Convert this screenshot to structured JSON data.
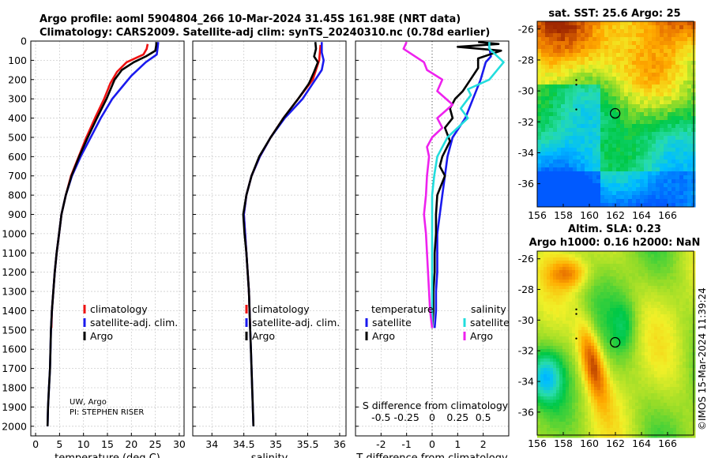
{
  "title": {
    "line1": "Argo profile: aoml 5904804_266 10-Mar-2024 31.45S 161.98E (NRT data)",
    "line2": "Climatology: CARS2009. Satellite-adj clim: synTS_20240310.nc (0.78d earlier)"
  },
  "credits": {
    "line1": "UW, Argo",
    "line2": "PI: STEPHEN RISER"
  },
  "watermark": "©IMOS 15-Mar-2024 11:39:24",
  "colors": {
    "climatology": "#ee1111",
    "satellite": "#1a1aee",
    "argo": "#000000",
    "sat_salinity": "#22dddd",
    "argo_salinity": "#ee22ee"
  },
  "chart_data": [
    {
      "id": "temperature",
      "type": "line",
      "xlabel": "temperature (deg C)",
      "ylabel": "",
      "xlim": [
        -1,
        31
      ],
      "ylim": [
        2050,
        0
      ],
      "xticks": [
        0,
        5,
        10,
        15,
        20,
        25,
        30
      ],
      "yticks": [
        0,
        100,
        200,
        300,
        400,
        500,
        600,
        700,
        800,
        900,
        1000,
        1100,
        1200,
        1300,
        1400,
        1500,
        1600,
        1700,
        1800,
        1900,
        2000
      ],
      "legend": {
        "placement": "lower-right",
        "entries": [
          "climatology",
          "satellite-adj. clim.",
          "Argo"
        ]
      },
      "series": [
        {
          "name": "climatology",
          "color": "#ee1111",
          "points": [
            [
              23.4,
              15
            ],
            [
              23.2,
              40
            ],
            [
              22.5,
              70
            ],
            [
              19.0,
              110
            ],
            [
              17.0,
              160
            ],
            [
              15.6,
              220
            ],
            [
              14.3,
              300
            ],
            [
              12.4,
              400
            ],
            [
              10.6,
              500
            ],
            [
              9.0,
              600
            ],
            [
              7.4,
              700
            ],
            [
              6.3,
              800
            ],
            [
              5.4,
              900
            ],
            [
              4.9,
              1000
            ],
            [
              4.4,
              1100
            ],
            [
              4.0,
              1200
            ],
            [
              3.7,
              1300
            ],
            [
              3.4,
              1400
            ],
            [
              3.3,
              1490
            ]
          ]
        },
        {
          "name": "satellite-adj. clim.",
          "color": "#1a1aee",
          "points": [
            [
              25.6,
              5
            ],
            [
              25.5,
              30
            ],
            [
              25.3,
              70
            ],
            [
              23.0,
              110
            ],
            [
              20.0,
              180
            ],
            [
              18.0,
              240
            ],
            [
              16.0,
              300
            ],
            [
              13.6,
              400
            ],
            [
              11.5,
              500
            ],
            [
              9.4,
              600
            ],
            [
              7.6,
              700
            ],
            [
              6.3,
              800
            ],
            [
              5.4,
              900
            ],
            [
              4.9,
              1000
            ],
            [
              4.4,
              1100
            ],
            [
              4.0,
              1200
            ],
            [
              3.7,
              1300
            ],
            [
              3.4,
              1400
            ],
            [
              3.2,
              1500
            ],
            [
              3.1,
              1600
            ],
            [
              3.0,
              1700
            ],
            [
              2.8,
              1800
            ],
            [
              2.6,
              1900
            ],
            [
              2.5,
              2000
            ]
          ]
        },
        {
          "name": "Argo",
          "color": "#000000",
          "points": [
            [
              25.2,
              5
            ],
            [
              25.2,
              20
            ],
            [
              25.0,
              50
            ],
            [
              23.0,
              80
            ],
            [
              20.5,
              110
            ],
            [
              18.0,
              150
            ],
            [
              16.5,
              200
            ],
            [
              14.8,
              300
            ],
            [
              12.8,
              400
            ],
            [
              10.9,
              500
            ],
            [
              9.1,
              600
            ],
            [
              7.5,
              700
            ],
            [
              6.3,
              800
            ],
            [
              5.4,
              900
            ],
            [
              4.9,
              1000
            ],
            [
              4.4,
              1100
            ],
            [
              4.0,
              1200
            ],
            [
              3.7,
              1300
            ],
            [
              3.4,
              1400
            ],
            [
              3.2,
              1500
            ],
            [
              3.1,
              1600
            ],
            [
              3.0,
              1700
            ],
            [
              2.8,
              1800
            ],
            [
              2.6,
              1900
            ],
            [
              2.5,
              2000
            ]
          ]
        }
      ]
    },
    {
      "id": "salinity",
      "type": "line",
      "xlabel": "salinity",
      "ylabel": "",
      "xlim": [
        33.7,
        36.1
      ],
      "ylim": [
        2050,
        0
      ],
      "xticks": [
        34,
        34.5,
        35,
        35.5,
        36
      ],
      "yticks": [
        0,
        100,
        200,
        300,
        400,
        500,
        600,
        700,
        800,
        900,
        1000,
        1100,
        1200,
        1300,
        1400,
        1500,
        1600,
        1700,
        1800,
        1900,
        2000
      ],
      "legend": {
        "placement": "lower-right",
        "entries": [
          "climatology",
          "satellite-adj. clim.",
          "Argo"
        ]
      },
      "series": [
        {
          "name": "climatology",
          "color": "#ee1111",
          "points": [
            [
              35.7,
              20
            ],
            [
              35.68,
              100
            ],
            [
              35.58,
              200
            ],
            [
              35.35,
              300
            ],
            [
              35.12,
              400
            ],
            [
              34.92,
              500
            ],
            [
              34.75,
              600
            ],
            [
              34.62,
              700
            ],
            [
              34.54,
              800
            ],
            [
              34.5,
              900
            ],
            [
              34.52,
              1000
            ],
            [
              34.54,
              1100
            ],
            [
              34.56,
              1200
            ],
            [
              34.58,
              1300
            ],
            [
              34.59,
              1400
            ],
            [
              34.6,
              1490
            ]
          ]
        },
        {
          "name": "satellite-adj. clim.",
          "color": "#1a1aee",
          "points": [
            [
              35.72,
              5
            ],
            [
              35.72,
              60
            ],
            [
              35.75,
              100
            ],
            [
              35.72,
              150
            ],
            [
              35.62,
              200
            ],
            [
              35.42,
              300
            ],
            [
              35.14,
              400
            ],
            [
              34.92,
              500
            ],
            [
              34.75,
              600
            ],
            [
              34.62,
              700
            ],
            [
              34.54,
              800
            ],
            [
              34.5,
              900
            ],
            [
              34.52,
              1000
            ],
            [
              34.54,
              1100
            ],
            [
              34.56,
              1200
            ],
            [
              34.58,
              1300
            ],
            [
              34.59,
              1400
            ],
            [
              34.6,
              1500
            ],
            [
              34.61,
              1600
            ],
            [
              34.62,
              1700
            ],
            [
              34.63,
              1800
            ],
            [
              34.64,
              1900
            ],
            [
              34.65,
              2000
            ]
          ]
        },
        {
          "name": "Argo",
          "color": "#000000",
          "points": [
            [
              35.62,
              5
            ],
            [
              35.63,
              40
            ],
            [
              35.6,
              80
            ],
            [
              35.66,
              110
            ],
            [
              35.6,
              160
            ],
            [
              35.52,
              220
            ],
            [
              35.35,
              300
            ],
            [
              35.12,
              400
            ],
            [
              34.92,
              500
            ],
            [
              34.74,
              600
            ],
            [
              34.62,
              700
            ],
            [
              34.54,
              800
            ],
            [
              34.49,
              900
            ],
            [
              34.51,
              1000
            ],
            [
              34.54,
              1100
            ],
            [
              34.56,
              1200
            ],
            [
              34.58,
              1300
            ],
            [
              34.59,
              1400
            ],
            [
              34.6,
              1500
            ],
            [
              34.61,
              1600
            ],
            [
              34.62,
              1700
            ],
            [
              34.63,
              1800
            ],
            [
              34.64,
              1900
            ],
            [
              34.65,
              2000
            ]
          ]
        }
      ]
    },
    {
      "id": "difference",
      "type": "line",
      "xlabel": "T difference from climatology",
      "xlabel2": "S difference from climatology",
      "xlim": [
        -3,
        3
      ],
      "ylim": [
        2050,
        0
      ],
      "xticks": [
        -2,
        -1,
        0,
        1,
        2
      ],
      "xticks2_values": [
        -0.5,
        -0.25,
        0,
        0.25,
        0.5
      ],
      "xticks2_labels": [
        "-0.5",
        "-0.25",
        "0",
        "0.25",
        "0.5"
      ],
      "yticks": [
        0,
        100,
        200,
        300,
        400,
        500,
        600,
        700,
        800,
        900,
        1000,
        1100,
        1200,
        1300,
        1400,
        1500,
        1600,
        1700,
        1800,
        1900,
        2000
      ],
      "legend": {
        "placement": "lower",
        "temperature_title": "temperature",
        "salinity_title": "salinity",
        "temperature_entries": [
          "satellite",
          "Argo"
        ],
        "salinity_entries": [
          "satellite",
          "Argo"
        ]
      },
      "series": [
        {
          "name": "T satellite",
          "color": "#1a1aee",
          "points": [
            [
              2.2,
              5
            ],
            [
              2.3,
              80
            ],
            [
              2.1,
              110
            ],
            [
              1.9,
              200
            ],
            [
              1.6,
              300
            ],
            [
              1.3,
              400
            ],
            [
              0.8,
              500
            ],
            [
              0.6,
              600
            ],
            [
              0.5,
              700
            ],
            [
              0.4,
              800
            ],
            [
              0.3,
              900
            ],
            [
              0.2,
              1000
            ],
            [
              0.2,
              1100
            ],
            [
              0.2,
              1200
            ],
            [
              0.15,
              1300
            ],
            [
              0.15,
              1400
            ],
            [
              0.1,
              1490
            ]
          ]
        },
        {
          "name": "T Argo",
          "color": "#000000",
          "points": [
            [
              1.8,
              5
            ],
            [
              2.6,
              15
            ],
            [
              1.0,
              30
            ],
            [
              2.7,
              50
            ],
            [
              1.8,
              90
            ],
            [
              1.8,
              140
            ],
            [
              1.5,
              200
            ],
            [
              1.2,
              260
            ],
            [
              0.9,
              300
            ],
            [
              0.7,
              350
            ],
            [
              0.8,
              400
            ],
            [
              0.5,
              450
            ],
            [
              0.7,
              520
            ],
            [
              0.4,
              600
            ],
            [
              0.3,
              650
            ],
            [
              0.5,
              700
            ],
            [
              0.2,
              800
            ],
            [
              0.15,
              900
            ],
            [
              0.15,
              1000
            ],
            [
              0.1,
              1100
            ],
            [
              0.1,
              1200
            ],
            [
              0.05,
              1300
            ],
            [
              0.05,
              1400
            ],
            [
              0.0,
              1490
            ]
          ]
        },
        {
          "name": "S satellite",
          "color": "#22dddd",
          "points": [
            [
              0.56,
              5
            ],
            [
              0.56,
              40
            ],
            [
              0.7,
              110
            ],
            [
              0.56,
              200
            ],
            [
              0.35,
              250
            ],
            [
              0.38,
              280
            ],
            [
              0.28,
              350
            ],
            [
              0.35,
              400
            ],
            [
              0.15,
              500
            ],
            [
              0.05,
              600
            ],
            [
              0.02,
              700
            ],
            [
              0.0,
              800
            ],
            [
              0.0,
              900
            ],
            [
              0.0,
              1000
            ],
            [
              0.0,
              1200
            ],
            [
              0.0,
              1400
            ],
            [
              0.0,
              1490
            ]
          ]
        },
        {
          "name": "S Argo",
          "color": "#ee22ee",
          "points": [
            [
              -0.25,
              5
            ],
            [
              -0.28,
              40
            ],
            [
              -0.08,
              110
            ],
            [
              -0.05,
              150
            ],
            [
              0.1,
              200
            ],
            [
              0.05,
              260
            ],
            [
              0.2,
              330
            ],
            [
              0.05,
              400
            ],
            [
              0.1,
              450
            ],
            [
              0.0,
              500
            ],
            [
              -0.05,
              550
            ],
            [
              -0.03,
              600
            ],
            [
              -0.05,
              700
            ],
            [
              -0.06,
              800
            ],
            [
              -0.08,
              900
            ],
            [
              -0.06,
              1000
            ],
            [
              -0.05,
              1100
            ],
            [
              -0.04,
              1200
            ],
            [
              -0.03,
              1300
            ],
            [
              -0.02,
              1400
            ],
            [
              0.0,
              1490
            ]
          ]
        }
      ]
    },
    {
      "id": "sst_map",
      "type": "heatmap",
      "title": "sat. SST: 25.6 Argo: 25",
      "xlim": [
        156,
        168
      ],
      "ylim": [
        -37.5,
        -25.5
      ],
      "xticks": [
        156,
        158,
        160,
        162,
        164,
        166
      ],
      "yticks": [
        -26,
        -28,
        -30,
        -32,
        -34,
        -36
      ],
      "marker": {
        "lon": 161.98,
        "lat": -31.45
      }
    },
    {
      "id": "sla_map",
      "type": "heatmap",
      "title": "Altim. SLA: 0.23",
      "subtitle": "Argo h1000: 0.16 h2000: NaN",
      "xlim": [
        156,
        168
      ],
      "ylim": [
        -37.5,
        -25.5
      ],
      "xticks": [
        156,
        158,
        160,
        162,
        164,
        166
      ],
      "yticks": [
        -26,
        -28,
        -30,
        -32,
        -34,
        -36
      ],
      "marker": {
        "lon": 161.98,
        "lat": -31.45
      }
    }
  ]
}
